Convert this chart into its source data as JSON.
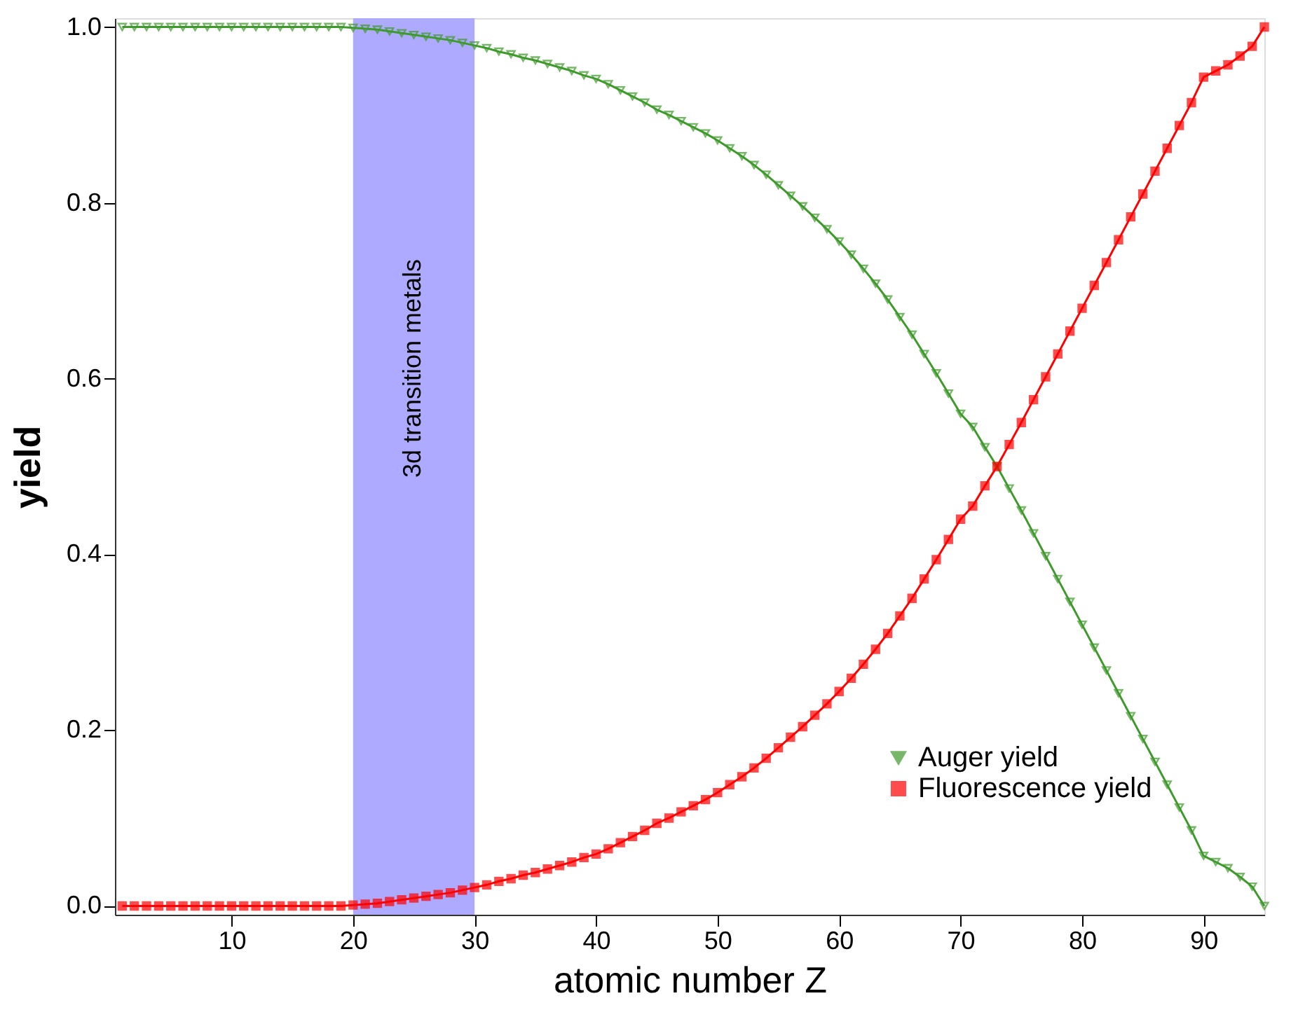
{
  "chart_data": {
    "type": "line",
    "xlabel": "atomic number Z",
    "ylabel": "yield",
    "x": [
      1,
      2,
      3,
      4,
      5,
      6,
      7,
      8,
      9,
      10,
      11,
      12,
      13,
      14,
      15,
      16,
      17,
      18,
      19,
      20,
      21,
      22,
      23,
      24,
      25,
      26,
      27,
      28,
      29,
      30,
      31,
      32,
      33,
      34,
      35,
      36,
      37,
      38,
      39,
      40,
      41,
      42,
      43,
      44,
      45,
      46,
      47,
      48,
      49,
      50,
      51,
      52,
      53,
      54,
      55,
      56,
      57,
      58,
      59,
      60,
      61,
      62,
      63,
      64,
      65,
      66,
      67,
      68,
      69,
      70,
      71,
      72,
      73,
      74,
      75,
      76,
      77,
      78,
      79,
      80,
      81,
      82,
      83,
      84,
      85,
      86,
      87,
      88,
      89,
      90,
      91,
      92,
      93,
      94,
      95
    ],
    "series": [
      {
        "name": "Auger yield",
        "color": "#3f9a2c",
        "marker": "triangle",
        "values": [
          1,
          1,
          1,
          1,
          1,
          1,
          1,
          1,
          1,
          1,
          1,
          1,
          1,
          1,
          1,
          1,
          1,
          1,
          1,
          0.999,
          0.998,
          0.997,
          0.995,
          0.993,
          0.991,
          0.989,
          0.987,
          0.985,
          0.982,
          0.979,
          0.976,
          0.972,
          0.969,
          0.965,
          0.962,
          0.958,
          0.954,
          0.95,
          0.945,
          0.941,
          0.935,
          0.928,
          0.921,
          0.914,
          0.906,
          0.9,
          0.893,
          0.886,
          0.879,
          0.871,
          0.862,
          0.853,
          0.843,
          0.832,
          0.82,
          0.808,
          0.796,
          0.783,
          0.77,
          0.756,
          0.741,
          0.725,
          0.708,
          0.69,
          0.67,
          0.65,
          0.628,
          0.606,
          0.583,
          0.56,
          0.545,
          0.522,
          0.5,
          0.475,
          0.45,
          0.424,
          0.398,
          0.372,
          0.346,
          0.32,
          0.294,
          0.268,
          0.242,
          0.216,
          0.19,
          0.164,
          0.138,
          0.112,
          0.086,
          0.057,
          0.05,
          0.043,
          0.033,
          0.022,
          0
        ]
      },
      {
        "name": "Fluorescence yield",
        "color": "#ff0000",
        "marker": "square",
        "values": [
          0,
          0,
          0,
          0,
          0,
          0,
          0,
          0,
          0,
          0,
          0,
          0,
          0,
          0,
          0,
          0,
          0,
          0,
          0,
          0.001,
          0.002,
          0.003,
          0.005,
          0.007,
          0.009,
          0.011,
          0.013,
          0.015,
          0.018,
          0.021,
          0.024,
          0.028,
          0.031,
          0.035,
          0.038,
          0.042,
          0.046,
          0.05,
          0.055,
          0.059,
          0.065,
          0.072,
          0.079,
          0.086,
          0.094,
          0.1,
          0.107,
          0.114,
          0.121,
          0.129,
          0.138,
          0.147,
          0.157,
          0.168,
          0.18,
          0.192,
          0.204,
          0.217,
          0.23,
          0.244,
          0.259,
          0.275,
          0.292,
          0.31,
          0.33,
          0.35,
          0.372,
          0.394,
          0.417,
          0.44,
          0.455,
          0.478,
          0.5,
          0.525,
          0.55,
          0.576,
          0.602,
          0.628,
          0.654,
          0.68,
          0.706,
          0.732,
          0.758,
          0.784,
          0.81,
          0.836,
          0.862,
          0.888,
          0.914,
          0.943,
          0.95,
          0.957,
          0.967,
          0.978,
          1
        ]
      }
    ],
    "xlim": [
      0.4,
      95
    ],
    "xticks": [
      10,
      20,
      30,
      40,
      50,
      60,
      70,
      80,
      90
    ],
    "ylim": [
      -0.01,
      1.01
    ],
    "yticks": [
      {
        "value": 0,
        "label": "0.0"
      },
      {
        "value": 0.2,
        "label": "0.2"
      },
      {
        "value": 0.4,
        "label": "0.4"
      },
      {
        "value": 0.6,
        "label": "0.6"
      },
      {
        "value": 0.8,
        "label": "0.8"
      },
      {
        "value": 1,
        "label": "1.0"
      }
    ],
    "bands": [
      {
        "axis": "x",
        "from": 20,
        "to": 30,
        "label": "3d transition metals",
        "color": "#aeaaff"
      }
    ],
    "legend": "bottom right",
    "grid": false,
    "line_style": "solid"
  }
}
